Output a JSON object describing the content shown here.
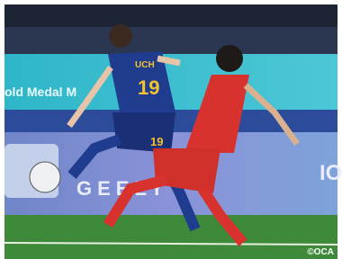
{
  "photo": {
    "banner_text": "old Medal M",
    "board_text": "GEELY",
    "board_side_text": "IO",
    "jersey_name": "UCH",
    "jersey_number": "19",
    "shorts_number": "19",
    "credit": "©OCA"
  }
}
